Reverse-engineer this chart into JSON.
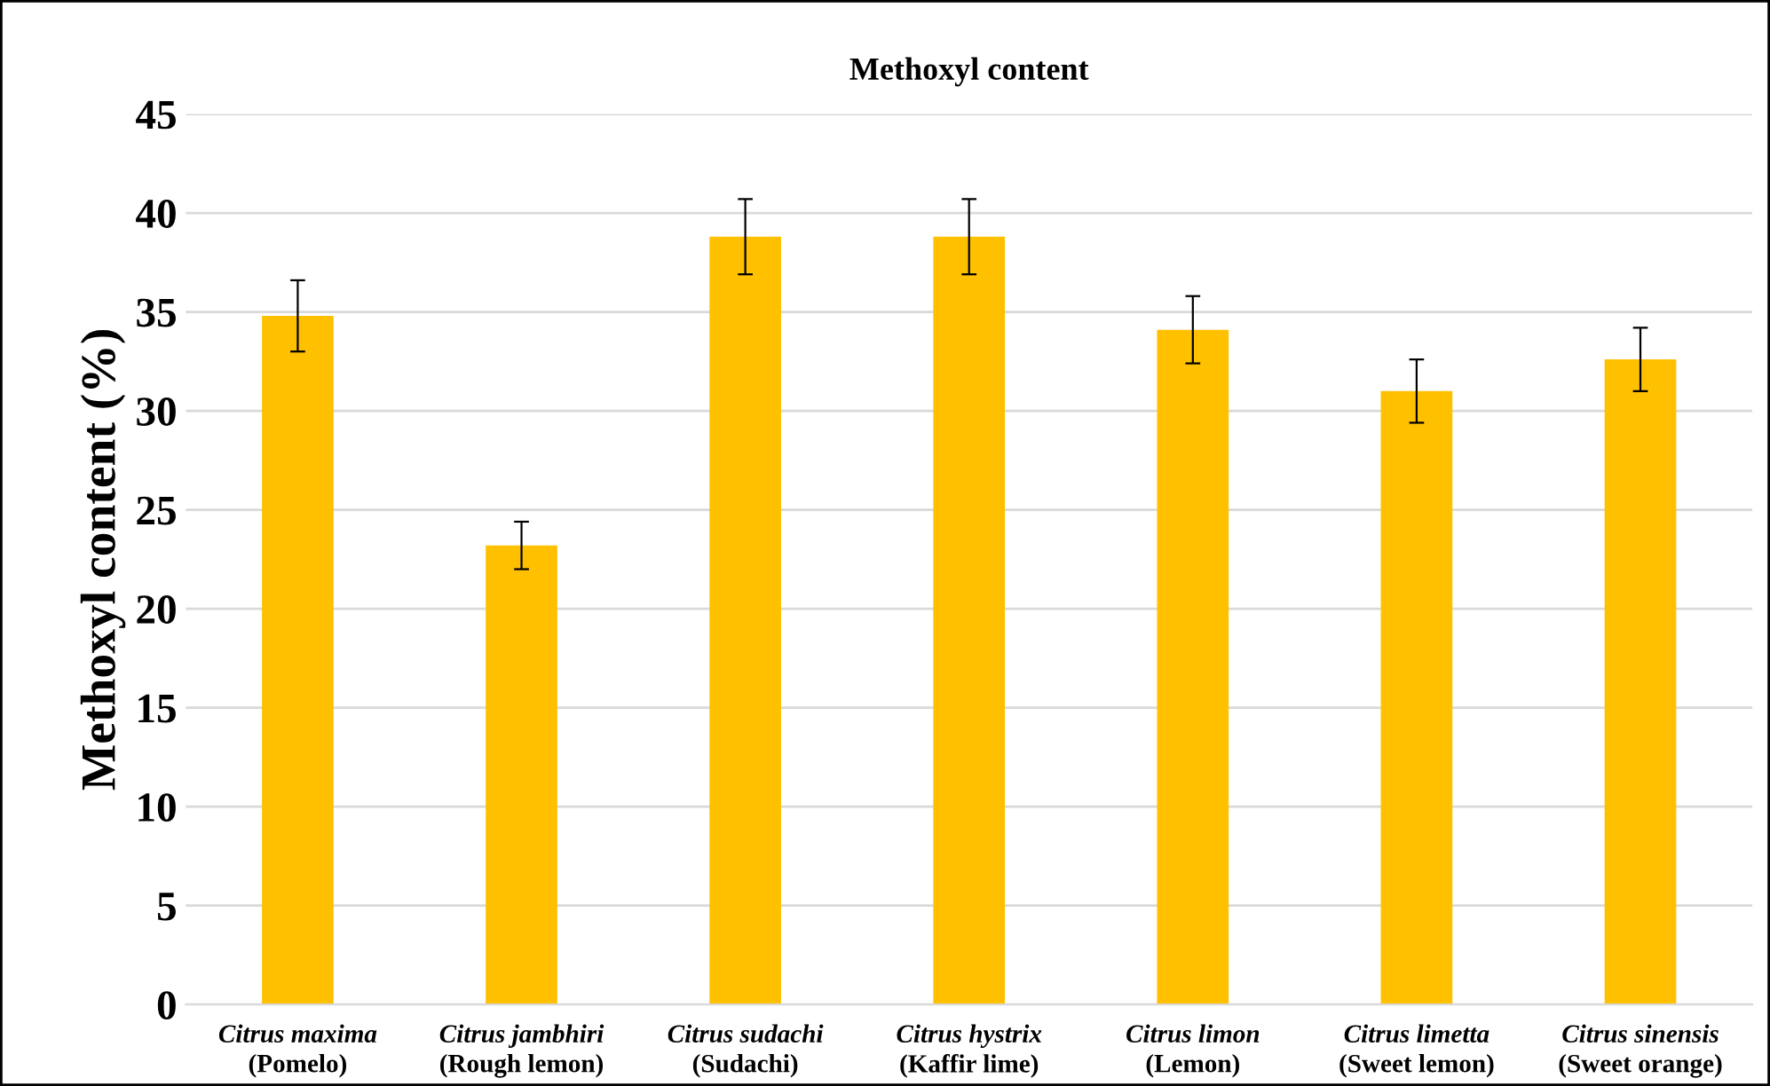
{
  "chart_data": {
    "type": "bar",
    "title": "Methoxyl content",
    "ylabel": "Methoxyl content (%)",
    "categories": [
      "Citrus maxima\n(Pomelo)",
      "Citrus jambhiri\n(Rough lemon)",
      "Citrus sudachi\n(Sudachi)",
      "Citrus hystrix\n(Kaffir lime)",
      "Citrus limon\n(Lemon)",
      "Citrus limetta\n(Sweet lemon)",
      "Citrus sinensis\n(Sweet orange)"
    ],
    "values": [
      34.8,
      23.2,
      38.8,
      38.8,
      34.1,
      31.0,
      32.6
    ],
    "errors": [
      1.8,
      1.2,
      1.9,
      1.9,
      1.7,
      1.6,
      1.6
    ],
    "color": "#ffc000",
    "ylim": [
      0,
      45
    ],
    "yticks": [
      0,
      5,
      10,
      15,
      20,
      25,
      30,
      35,
      40,
      45
    ],
    "grid": "y"
  }
}
